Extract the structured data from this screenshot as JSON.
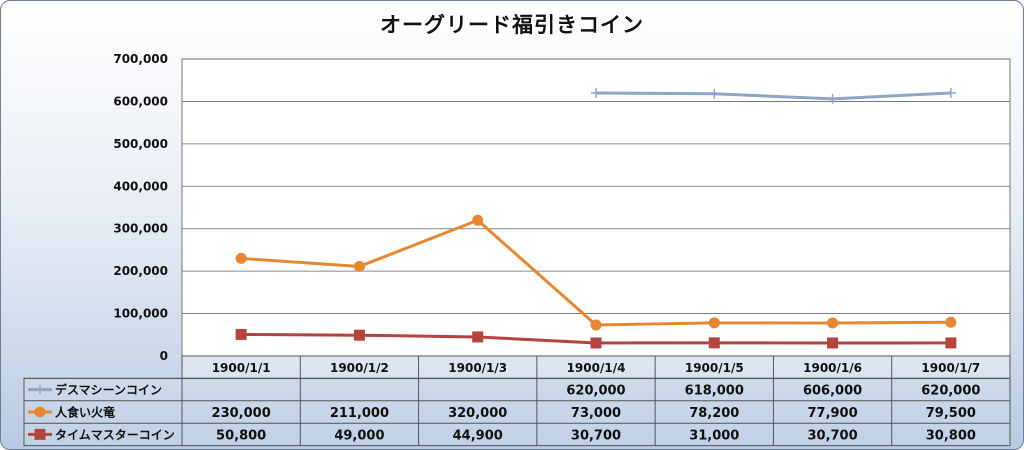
{
  "chart_data": {
    "type": "line",
    "title": "オーグリード福引きコイン",
    "categories": [
      "1900/1/1",
      "1900/1/2",
      "1900/1/3",
      "1900/1/4",
      "1900/1/5",
      "1900/1/6",
      "1900/1/7"
    ],
    "y_ticks": [
      "0",
      "100,000",
      "200,000",
      "300,000",
      "400,000",
      "500,000",
      "600,000",
      "700,000"
    ],
    "ylim": [
      0,
      700000
    ],
    "grid": true,
    "legend": "data-table",
    "series": [
      {
        "name": "デスマシーンコイン",
        "color": "#8ea4c8",
        "marker": "plus",
        "values": [
          null,
          null,
          null,
          620000,
          618000,
          606000,
          620000
        ],
        "labels": [
          "",
          "",
          "",
          "620,000",
          "618,000",
          "606,000",
          "620,000"
        ]
      },
      {
        "name": "人食い火竜",
        "color": "#e8872f",
        "marker": "circle",
        "values": [
          230000,
          211000,
          320000,
          73000,
          78200,
          77900,
          79500
        ],
        "labels": [
          "230,000",
          "211,000",
          "320,000",
          "73,000",
          "78,200",
          "77,900",
          "79,500"
        ]
      },
      {
        "name": "タイムマスターコイン",
        "color": "#b5443f",
        "marker": "square",
        "values": [
          50800,
          49000,
          44900,
          30700,
          31000,
          30700,
          30800
        ],
        "labels": [
          "50,800",
          "49,000",
          "44,900",
          "30,700",
          "31,000",
          "30,700",
          "30,800"
        ]
      }
    ]
  }
}
